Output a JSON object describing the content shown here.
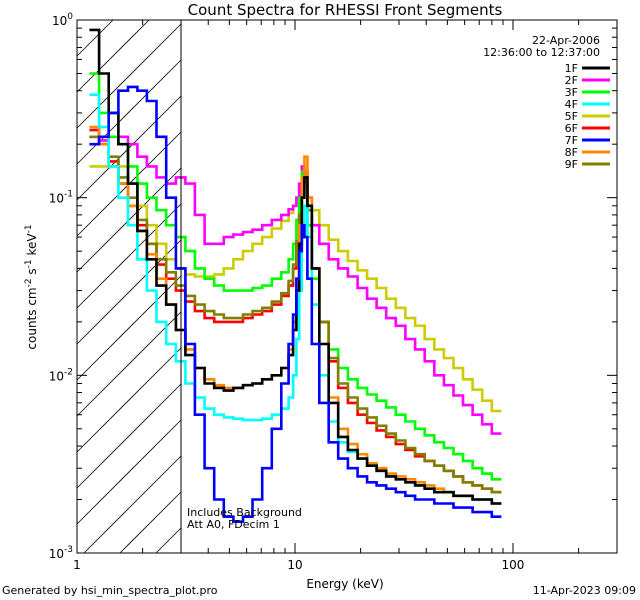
{
  "chart_data": {
    "type": "line",
    "title": "Count Spectra for RHESSI Front Segments",
    "xlabel": "Energy (keV)",
    "ylabel_base": "counts cm",
    "ylabel_parts": [
      "counts cm",
      "-2",
      " s",
      "-1",
      " keV",
      "-1"
    ],
    "x_scale": "log",
    "y_scale": "log",
    "xlim": [
      1.0,
      300
    ],
    "ylim": [
      0.001,
      1.0
    ],
    "x_ticks": [
      {
        "v": 1,
        "label": "1"
      },
      {
        "v": 10,
        "label": "10"
      },
      {
        "v": 100,
        "label": "100"
      }
    ],
    "y_ticks": [
      {
        "v": 1,
        "base": "10",
        "exp": "0"
      },
      {
        "v": 0.1,
        "base": "10",
        "exp": "-1"
      },
      {
        "v": 0.01,
        "base": "10",
        "exp": "-2"
      },
      {
        "v": 0.001,
        "base": "10",
        "exp": "-3"
      }
    ],
    "date": "22-Apr-2006",
    "time_range": "12:36:00 to 12:37:00",
    "background_note": "Includes Background",
    "attenuator_note": "Att A0, FDecim 1",
    "shaded_region_max_keV": 3.0,
    "legend_position": "top-right",
    "series": [
      {
        "name": "1F",
        "color": "#000000",
        "values": [
          0.88,
          0.5,
          0.3,
          0.2,
          0.12,
          0.065,
          0.045,
          0.032,
          0.025,
          0.018,
          0.013,
          0.011,
          0.009,
          0.0085,
          0.0082,
          0.0085,
          0.0088,
          0.009,
          0.0095,
          0.01,
          0.011,
          0.013,
          0.018,
          0.03,
          0.055,
          0.1,
          0.13,
          0.09,
          0.04,
          0.015,
          0.007,
          0.0045,
          0.0038,
          0.0034,
          0.0031,
          0.0029,
          0.0027,
          0.0026,
          0.0025,
          0.0024,
          0.0023,
          0.0022,
          0.0022,
          0.0021,
          0.0021,
          0.002,
          0.002,
          0.0019
        ]
      },
      {
        "name": "2F",
        "color": "#ff00ff",
        "values": [
          0.22,
          0.21,
          0.22,
          0.22,
          0.2,
          0.17,
          0.15,
          0.13,
          0.12,
          0.13,
          0.12,
          0.08,
          0.055,
          0.055,
          0.06,
          0.062,
          0.064,
          0.066,
          0.07,
          0.075,
          0.08,
          0.086,
          0.09,
          0.1,
          0.12,
          0.15,
          0.14,
          0.1,
          0.07,
          0.055,
          0.045,
          0.04,
          0.036,
          0.031,
          0.027,
          0.024,
          0.021,
          0.019,
          0.016,
          0.014,
          0.012,
          0.01,
          0.0088,
          0.0077,
          0.0068,
          0.006,
          0.0053,
          0.0047
        ]
      },
      {
        "name": "3F",
        "color": "#00ff00",
        "values": [
          0.5,
          0.3,
          0.22,
          0.2,
          0.15,
          0.12,
          0.1,
          0.085,
          0.07,
          0.06,
          0.05,
          0.04,
          0.035,
          0.032,
          0.03,
          0.03,
          0.03,
          0.031,
          0.032,
          0.035,
          0.038,
          0.045,
          0.055,
          0.075,
          0.1,
          0.14,
          0.13,
          0.07,
          0.035,
          0.02,
          0.014,
          0.011,
          0.0095,
          0.0085,
          0.0078,
          0.0072,
          0.0066,
          0.006,
          0.0055,
          0.005,
          0.0046,
          0.0042,
          0.0039,
          0.0036,
          0.0033,
          0.003,
          0.0028,
          0.0026
        ]
      },
      {
        "name": "4F",
        "color": "#00ffff",
        "values": [
          0.38,
          0.25,
          0.15,
          0.1,
          0.07,
          0.045,
          0.03,
          0.02,
          0.015,
          0.012,
          0.009,
          0.0075,
          0.0065,
          0.006,
          0.0058,
          0.0057,
          0.0056,
          0.0056,
          0.0057,
          0.006,
          0.0065,
          0.0075,
          0.01,
          0.016,
          0.03,
          0.06,
          0.09,
          0.06,
          0.025,
          0.01,
          0.0055,
          0.0042,
          0.0037,
          0.0034,
          0.0031,
          0.0029,
          0.0027,
          0.0026,
          0.0025,
          0.0024,
          0.0023,
          0.0022,
          0.0022,
          0.0021,
          0.0021,
          0.002,
          0.002,
          0.0019
        ]
      },
      {
        "name": "5F",
        "color": "#cccc00",
        "values": [
          0.15,
          0.15,
          0.15,
          0.15,
          0.12,
          0.09,
          0.07,
          0.055,
          0.045,
          0.04,
          0.037,
          0.036,
          0.036,
          0.037,
          0.04,
          0.045,
          0.05,
          0.055,
          0.06,
          0.067,
          0.074,
          0.082,
          0.09,
          0.1,
          0.11,
          0.12,
          0.115,
          0.1,
          0.085,
          0.07,
          0.058,
          0.05,
          0.044,
          0.039,
          0.035,
          0.031,
          0.027,
          0.024,
          0.021,
          0.019,
          0.016,
          0.014,
          0.0125,
          0.011,
          0.0095,
          0.0083,
          0.0072,
          0.0063
        ]
      },
      {
        "name": "6F",
        "color": "#ff0000",
        "values": [
          0.24,
          0.2,
          0.16,
          0.12,
          0.09,
          0.07,
          0.055,
          0.042,
          0.035,
          0.03,
          0.026,
          0.023,
          0.021,
          0.02,
          0.02,
          0.02,
          0.021,
          0.022,
          0.023,
          0.025,
          0.028,
          0.032,
          0.04,
          0.055,
          0.08,
          0.12,
          0.14,
          0.085,
          0.04,
          0.02,
          0.012,
          0.0085,
          0.007,
          0.006,
          0.0054,
          0.0049,
          0.0045,
          0.0041,
          0.0038,
          0.0035,
          0.0033,
          0.0031,
          0.0029,
          0.0027,
          0.0025,
          0.0024,
          0.0023,
          0.0022
        ]
      },
      {
        "name": "7F",
        "color": "#0000ff",
        "values": [
          0.2,
          0.22,
          0.3,
          0.4,
          0.42,
          0.4,
          0.35,
          0.22,
          0.1,
          0.04,
          0.015,
          0.006,
          0.003,
          0.002,
          0.0016,
          0.0015,
          0.0016,
          0.002,
          0.003,
          0.005,
          0.009,
          0.015,
          0.022,
          0.035,
          0.05,
          0.07,
          0.06,
          0.035,
          0.015,
          0.007,
          0.0042,
          0.0034,
          0.003,
          0.0027,
          0.0025,
          0.0024,
          0.0023,
          0.0022,
          0.0021,
          0.002,
          0.002,
          0.0019,
          0.0019,
          0.0018,
          0.0018,
          0.0017,
          0.0017,
          0.0016
        ]
      },
      {
        "name": "8F",
        "color": "#ff8800",
        "values": [
          0.25,
          0.2,
          0.15,
          0.12,
          0.09,
          0.065,
          0.048,
          0.035,
          0.025,
          0.018,
          0.014,
          0.011,
          0.0095,
          0.0088,
          0.0085,
          0.0085,
          0.0088,
          0.009,
          0.0095,
          0.01,
          0.011,
          0.014,
          0.02,
          0.035,
          0.07,
          0.13,
          0.17,
          0.1,
          0.04,
          0.015,
          0.0075,
          0.005,
          0.0041,
          0.0036,
          0.0032,
          0.003,
          0.0028,
          0.0027,
          0.0026,
          0.0025,
          0.0024,
          0.0023,
          0.0022,
          0.0021,
          0.0021,
          0.002,
          0.002,
          0.0019
        ]
      },
      {
        "name": "9F",
        "color": "#808000",
        "values": [
          0.22,
          0.2,
          0.17,
          0.13,
          0.1,
          0.075,
          0.055,
          0.045,
          0.038,
          0.032,
          0.028,
          0.025,
          0.023,
          0.022,
          0.021,
          0.021,
          0.022,
          0.023,
          0.024,
          0.026,
          0.029,
          0.034,
          0.042,
          0.057,
          0.08,
          0.12,
          0.14,
          0.085,
          0.04,
          0.02,
          0.0125,
          0.009,
          0.0075,
          0.0065,
          0.0058,
          0.0052,
          0.0047,
          0.0043,
          0.0039,
          0.0036,
          0.0033,
          0.0031,
          0.0029,
          0.0027,
          0.0025,
          0.0024,
          0.0023,
          0.0022
        ]
      }
    ],
    "energy_bins_keV": [
      1.2,
      1.33,
      1.47,
      1.63,
      1.8,
      1.99,
      2.2,
      2.44,
      2.7,
      2.99,
      3.3,
      3.66,
      4.05,
      4.48,
      4.96,
      5.49,
      6.07,
      6.72,
      7.44,
      8.23,
      9.1,
      9.6,
      10.0,
      10.3,
      10.6,
      10.9,
      11.2,
      11.6,
      12.3,
      13.6,
      15.0,
      16.6,
      18.4,
      20.4,
      22.5,
      24.9,
      27.6,
      30.5,
      33.8,
      37.4,
      41.4,
      45.8,
      50.7,
      56.1,
      62.0,
      68.7,
      76.0,
      84.1
    ]
  },
  "footer": {
    "left": "Generated by hsi_min_spectra_plot.pro",
    "right": "11-Apr-2023 09:09"
  }
}
